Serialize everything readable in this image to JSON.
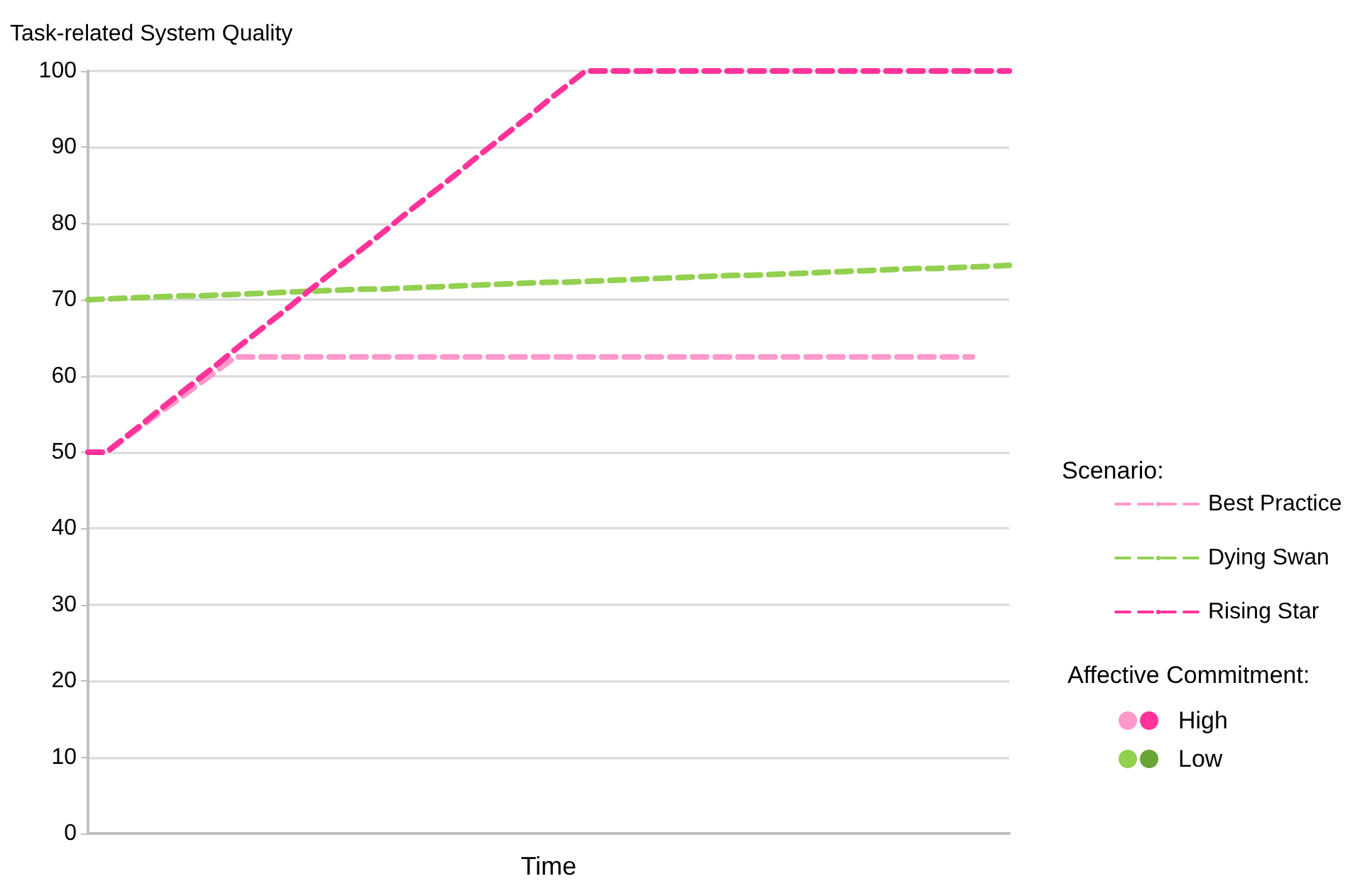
{
  "chart_data": {
    "type": "line",
    "xlabel": "Time",
    "ylabel": "Task-related System Quality",
    "legend_title": "Scenario:",
    "categories": [
      null,
      null,
      null,
      null,
      null,
      null,
      null,
      null,
      null,
      null,
      null,
      null,
      null,
      null,
      null,
      null,
      null,
      null,
      null,
      null,
      null,
      null,
      null,
      null,
      null,
      null,
      null,
      null,
      null,
      null,
      null,
      null,
      null,
      null,
      null,
      null,
      null,
      null,
      null,
      null,
      null,
      null,
      null,
      null,
      null,
      null,
      null,
      null,
      null,
      null,
      null
    ],
    "ylim": [
      0,
      100
    ],
    "yticks": [
      0,
      10,
      20,
      30,
      40,
      50,
      60,
      70,
      80,
      90,
      100
    ],
    "grid": "y",
    "legend": "right",
    "marker": "none",
    "series": [
      {
        "name": "Best Practice",
        "color": "#ff99cc",
        "line_style": "dashed",
        "values": [
          50,
          50,
          51.8,
          53.6,
          55.4,
          57.1,
          58.9,
          60.7,
          62.5,
          62.5,
          62.5,
          62.5,
          62.5,
          62.5,
          62.5,
          62.5,
          62.5,
          62.5,
          62.5,
          62.5,
          62.5,
          62.5,
          62.5,
          62.5,
          62.5,
          62.5,
          62.5,
          62.5,
          62.5,
          62.5,
          62.5,
          62.5,
          62.5,
          62.5,
          62.5,
          62.5,
          62.5,
          62.5,
          62.5,
          62.5,
          62.5,
          62.5,
          62.5,
          62.5,
          62.5,
          62.5,
          62.5,
          62.5,
          62.5,
          null,
          null
        ]
      },
      {
        "name": "Dying Swan",
        "color": "#92d050",
        "line_style": "dashed",
        "values": [
          70,
          70.1,
          70.2,
          70.3,
          70.4,
          70.5,
          70.5,
          70.6,
          70.7,
          70.8,
          70.9,
          71,
          71.1,
          71.2,
          71.3,
          71.4,
          71.4,
          71.5,
          71.6,
          71.7,
          71.8,
          71.9,
          72,
          72.1,
          72.2,
          72.3,
          72.3,
          72.4,
          72.5,
          72.6,
          72.7,
          72.8,
          72.9,
          73,
          73.1,
          73.2,
          73.2,
          73.3,
          73.4,
          73.5,
          73.6,
          73.7,
          73.8,
          73.9,
          74,
          74.1,
          74.1,
          74.2,
          74.3,
          74.4,
          74.5
        ]
      },
      {
        "name": "Rising Star",
        "color": "#ff3399",
        "line_style": "dashed",
        "values": [
          50,
          50,
          51.9,
          53.8,
          55.8,
          57.7,
          59.6,
          61.5,
          63.5,
          65.4,
          67.3,
          69.2,
          71.2,
          73.1,
          75,
          76.9,
          78.8,
          80.8,
          82.7,
          84.6,
          86.5,
          88.5,
          90.4,
          92.3,
          94.2,
          96.2,
          98.1,
          100,
          100,
          100,
          100,
          100,
          100,
          100,
          100,
          100,
          100,
          100,
          100,
          100,
          100,
          100,
          100,
          100,
          100,
          100,
          100,
          100,
          100,
          100,
          100
        ]
      }
    ],
    "annotations": [
      "Affective Commitment:",
      "High",
      "Low"
    ]
  }
}
